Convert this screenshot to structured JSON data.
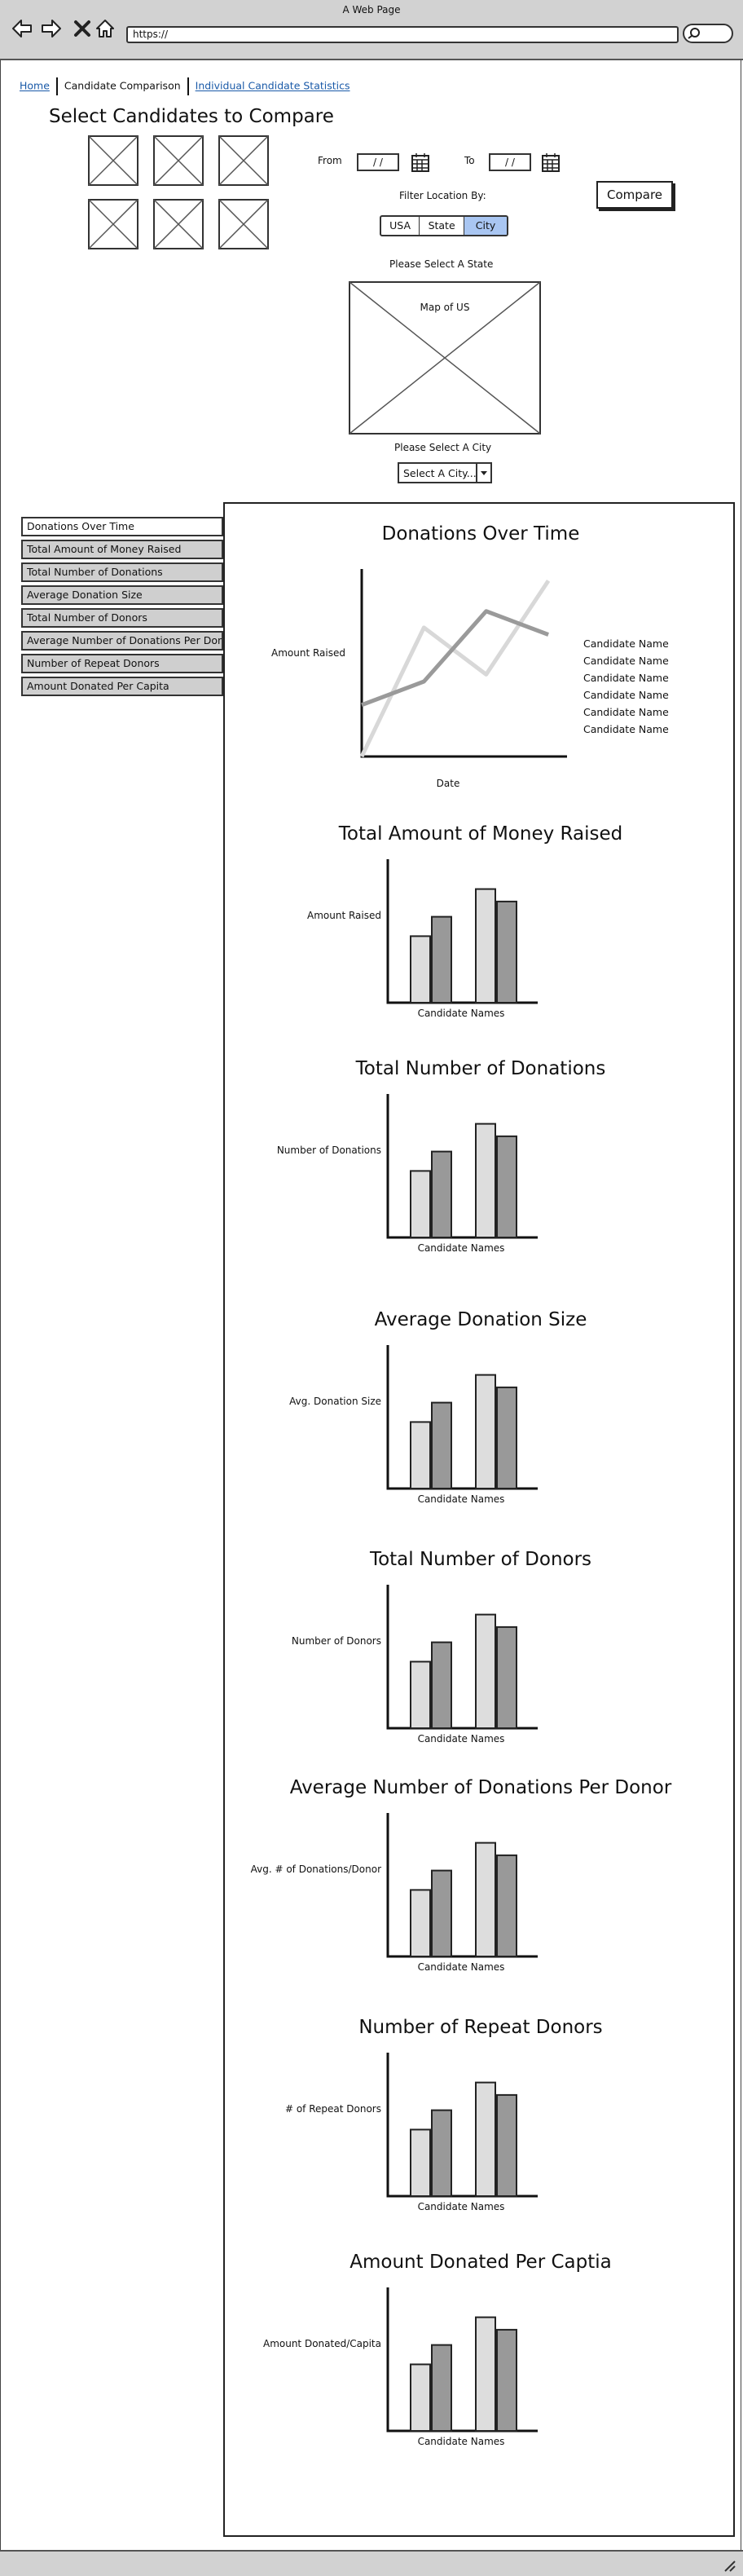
{
  "window": {
    "title": "A Web Page",
    "url": "https://"
  },
  "breadcrumb": {
    "home": "Home",
    "current": "Candidate Comparison",
    "stats": "Individual Candidate Statistics"
  },
  "select": {
    "title": "Select Candidates to Compare"
  },
  "dates": {
    "from_label": "From",
    "to_label": "To",
    "from_value": "/ /",
    "to_value": "/ /"
  },
  "filter": {
    "label": "Filter Location By:",
    "options": [
      "USA",
      "State",
      "City"
    ],
    "selected": "City"
  },
  "compare_label": "Compare",
  "map": {
    "prompt": "Please Select A State",
    "label": "Map of US"
  },
  "city": {
    "prompt": "Please Select A City",
    "value": "Select A City..."
  },
  "sidebar": {
    "items": [
      "Donations Over Time",
      "Total Amount of Money Raised",
      "Total Number of Donations",
      "Average Donation Size",
      "Total Number of Donors",
      "Average Number of Donations Per Donor",
      "Number of Repeat Donors",
      "Amount Donated Per Capita"
    ],
    "active_index": 0
  },
  "line_chart": {
    "title": "Donations Over Time",
    "xlabel": "Date",
    "ylabel": "Amount Raised",
    "legend": [
      "Candidate Name",
      "Candidate Name",
      "Candidate Name",
      "Candidate Name",
      "Candidate Name",
      "Candidate Name"
    ]
  },
  "bar_charts": [
    {
      "title": "Total Amount of Money Raised",
      "ylabel": "Amount Raised",
      "xlabel": "Candidate Names"
    },
    {
      "title": "Total Number of Donations",
      "ylabel": "Number of Donations",
      "xlabel": "Candidate Names"
    },
    {
      "title": "Average Donation Size",
      "ylabel": "Avg. Donation Size",
      "xlabel": "Candidate Names"
    },
    {
      "title": "Total Number of Donors",
      "ylabel": "Number of Donors",
      "xlabel": "Candidate Names"
    },
    {
      "title": "Average Number of Donations Per Donor",
      "ylabel": "Avg. # of Donations/Donor",
      "xlabel": "Candidate Names"
    },
    {
      "title": "Number of Repeat Donors",
      "ylabel": "# of Repeat Donors",
      "xlabel": "Candidate Names"
    },
    {
      "title": "Amount Donated Per Captia",
      "ylabel": "Amount Donated/Capita",
      "xlabel": "Candidate Names"
    }
  ],
  "chart_data": [
    {
      "type": "line",
      "title": "Donations Over Time",
      "xlabel": "Date",
      "ylabel": "Amount Raised",
      "x": [
        0,
        1,
        2,
        3,
        4
      ],
      "series": [
        {
          "color": "#d8d8d8",
          "values": [
            0,
            55,
            35,
            75,
            null
          ]
        },
        {
          "color": "#9a9a9a",
          "values": [
            22,
            32,
            62,
            52,
            null
          ]
        }
      ]
    },
    {
      "type": "bar",
      "title": "Total Amount of Money Raised",
      "xlabel": "Candidate Names",
      "ylabel": "Amount Raised",
      "values": [
        48,
        62,
        82,
        73
      ],
      "colors": [
        "#dddddd",
        "#999999",
        "#dddddd",
        "#999999"
      ]
    },
    {
      "type": "bar",
      "title": "Total Number of Donations",
      "xlabel": "Candidate Names",
      "ylabel": "Number of Donations",
      "values": [
        48,
        62,
        82,
        73
      ],
      "colors": [
        "#dddddd",
        "#999999",
        "#dddddd",
        "#999999"
      ]
    },
    {
      "type": "bar",
      "title": "Average Donation Size",
      "xlabel": "Candidate Names",
      "ylabel": "Avg. Donation Size",
      "values": [
        48,
        62,
        82,
        73
      ],
      "colors": [
        "#dddddd",
        "#999999",
        "#dddddd",
        "#999999"
      ]
    },
    {
      "type": "bar",
      "title": "Total Number of Donors",
      "xlabel": "Candidate Names",
      "ylabel": "Number of Donors",
      "values": [
        48,
        62,
        82,
        73
      ],
      "colors": [
        "#dddddd",
        "#999999",
        "#dddddd",
        "#999999"
      ]
    },
    {
      "type": "bar",
      "title": "Average Number of Donations Per Donor",
      "xlabel": "Candidate Names",
      "ylabel": "Avg. # of Donations/Donor",
      "values": [
        48,
        62,
        82,
        73
      ],
      "colors": [
        "#dddddd",
        "#999999",
        "#dddddd",
        "#999999"
      ]
    },
    {
      "type": "bar",
      "title": "Number of Repeat Donors",
      "xlabel": "Candidate Names",
      "ylabel": "# of Repeat Donors",
      "values": [
        48,
        62,
        82,
        73
      ],
      "colors": [
        "#dddddd",
        "#999999",
        "#dddddd",
        "#999999"
      ]
    },
    {
      "type": "bar",
      "title": "Amount Donated Per Captia",
      "xlabel": "Candidate Names",
      "ylabel": "Amount Donated/Capita",
      "values": [
        48,
        62,
        82,
        73
      ],
      "colors": [
        "#dddddd",
        "#999999",
        "#dddddd",
        "#999999"
      ]
    }
  ],
  "colors": {
    "link": "#1a5aa8",
    "selected": "#a9c6f2",
    "chrome": "#d2d2d2"
  }
}
